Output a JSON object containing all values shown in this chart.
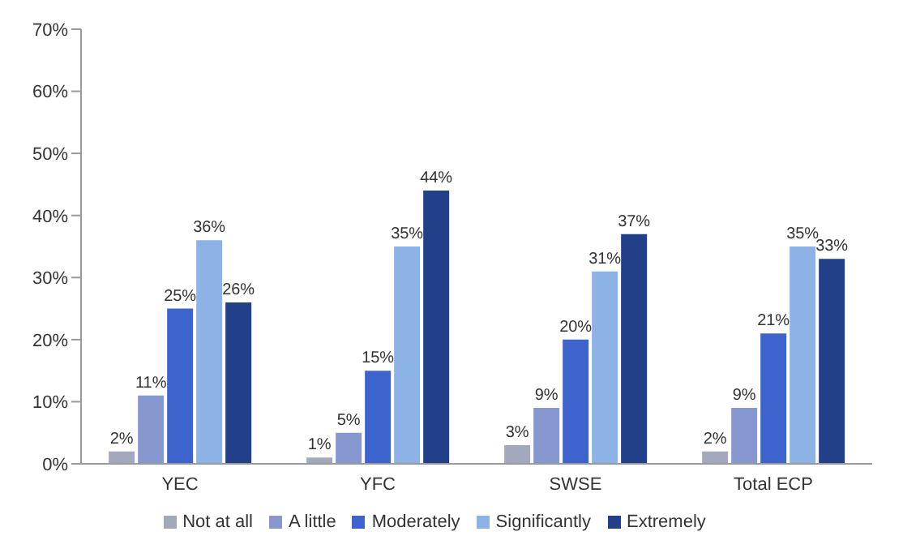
{
  "chart_data": {
    "type": "bar",
    "categories": [
      "YEC",
      "YFC",
      "SWSE",
      "Total ECP"
    ],
    "series": [
      {
        "name": "Not at all",
        "color": "#a3a9bd",
        "values": [
          2,
          1,
          3,
          2
        ],
        "value_labels": [
          "2%",
          "1%",
          "3%",
          "2%"
        ]
      },
      {
        "name": "A little",
        "color": "#8797cf",
        "values": [
          11,
          5,
          9,
          9
        ],
        "value_labels": [
          "11%",
          "5%",
          "9%",
          "9%"
        ]
      },
      {
        "name": "Moderately",
        "color": "#3d64cc",
        "values": [
          25,
          15,
          20,
          21
        ],
        "value_labels": [
          "25%",
          "15%",
          "20%",
          "21%"
        ]
      },
      {
        "name": "Significantly",
        "color": "#8db3e6",
        "values": [
          36,
          35,
          31,
          35
        ],
        "value_labels": [
          "36%",
          "35%",
          "31%",
          "35%"
        ]
      },
      {
        "name": "Extremely",
        "color": "#223f8a",
        "values": [
          26,
          44,
          37,
          33
        ],
        "value_labels": [
          "26%",
          "44%",
          "37%",
          "33%"
        ]
      }
    ],
    "ylim": [
      0,
      70
    ],
    "yticks": [
      {
        "value": 0,
        "label": "0%"
      },
      {
        "value": 10,
        "label": "10%"
      },
      {
        "value": 20,
        "label": "20%"
      },
      {
        "value": 30,
        "label": "30%"
      },
      {
        "value": 40,
        "label": "40%"
      },
      {
        "value": 50,
        "label": "50%"
      },
      {
        "value": 60,
        "label": "60%"
      },
      {
        "value": 70,
        "label": "70%"
      }
    ],
    "grid": false,
    "legend": "bottom"
  }
}
